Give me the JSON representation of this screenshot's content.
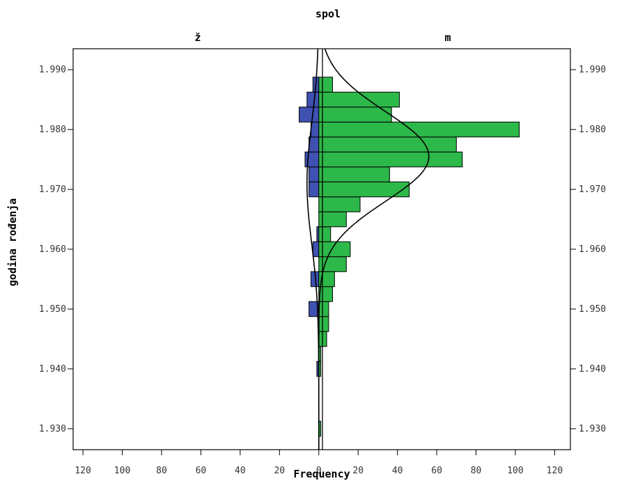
{
  "chart_data": {
    "type": "bar",
    "title": "spol",
    "xlabel": "Frequency",
    "ylabel": "godina rođenja",
    "panels": [
      {
        "name": "ž",
        "direction": "left",
        "color": "#3f51b1"
      },
      {
        "name": "m",
        "direction": "right",
        "color": "#2db84a"
      }
    ],
    "xlim": [
      -125,
      128
    ],
    "ylim": [
      1926.5,
      1993.5
    ],
    "x_ticks": [
      {
        "value": -120,
        "label": "120"
      },
      {
        "value": -100,
        "label": "100"
      },
      {
        "value": -80,
        "label": "80"
      },
      {
        "value": -60,
        "label": "60"
      },
      {
        "value": -40,
        "label": "40"
      },
      {
        "value": -20,
        "label": "20"
      },
      {
        "value": 0,
        "label": "0"
      },
      {
        "value": 20,
        "label": "20"
      },
      {
        "value": 40,
        "label": "40"
      },
      {
        "value": 60,
        "label": "60"
      },
      {
        "value": 80,
        "label": "80"
      },
      {
        "value": 100,
        "label": "100"
      },
      {
        "value": 120,
        "label": "120"
      }
    ],
    "y_ticks": [
      {
        "value": 1930,
        "label": "1.930"
      },
      {
        "value": 1940,
        "label": "1.940"
      },
      {
        "value": 1950,
        "label": "1.950"
      },
      {
        "value": 1960,
        "label": "1.960"
      },
      {
        "value": 1970,
        "label": "1.970"
      },
      {
        "value": 1980,
        "label": "1.980"
      },
      {
        "value": 1990,
        "label": "1.990"
      }
    ],
    "bin_width": 2.5,
    "series": [
      {
        "name": "ž",
        "bins": [
          {
            "y": 1940.0,
            "value": 1
          },
          {
            "y": 1950.0,
            "value": 5
          },
          {
            "y": 1955.0,
            "value": 4
          },
          {
            "y": 1960.0,
            "value": 3
          },
          {
            "y": 1962.5,
            "value": 1
          },
          {
            "y": 1970.0,
            "value": 5
          },
          {
            "y": 1972.5,
            "value": 5
          },
          {
            "y": 1975.0,
            "value": 7
          },
          {
            "y": 1977.5,
            "value": 5
          },
          {
            "y": 1980.0,
            "value": 4
          },
          {
            "y": 1982.5,
            "value": 10
          },
          {
            "y": 1985.0,
            "value": 6
          },
          {
            "y": 1987.5,
            "value": 3
          }
        ]
      },
      {
        "name": "m",
        "bins": [
          {
            "y": 1930.0,
            "value": 1
          },
          {
            "y": 1940.0,
            "value": 1
          },
          {
            "y": 1942.5,
            "value": 1
          },
          {
            "y": 1945.0,
            "value": 4
          },
          {
            "y": 1947.5,
            "value": 5
          },
          {
            "y": 1950.0,
            "value": 5
          },
          {
            "y": 1952.5,
            "value": 7
          },
          {
            "y": 1955.0,
            "value": 8
          },
          {
            "y": 1957.5,
            "value": 14
          },
          {
            "y": 1960.0,
            "value": 16
          },
          {
            "y": 1962.5,
            "value": 6
          },
          {
            "y": 1965.0,
            "value": 14
          },
          {
            "y": 1967.5,
            "value": 21
          },
          {
            "y": 1970.0,
            "value": 46
          },
          {
            "y": 1972.5,
            "value": 36
          },
          {
            "y": 1975.0,
            "value": 73
          },
          {
            "y": 1977.5,
            "value": 70
          },
          {
            "y": 1980.0,
            "value": 102
          },
          {
            "y": 1982.5,
            "value": 37
          },
          {
            "y": 1985.0,
            "value": 41
          },
          {
            "y": 1987.5,
            "value": 7
          }
        ]
      }
    ],
    "normal_curves": [
      {
        "name": "ž",
        "peak": 6,
        "mean": 1971,
        "sd": 10
      },
      {
        "name": "m",
        "peak": 56,
        "mean": 1975.5,
        "sd": 7.5
      }
    ]
  }
}
